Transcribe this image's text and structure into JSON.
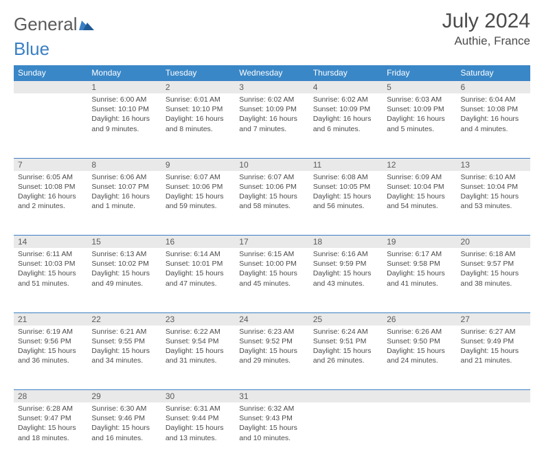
{
  "brand": {
    "part1": "General",
    "part2": "Blue"
  },
  "title": "July 2024",
  "location": "Authie, France",
  "colors": {
    "header_bg": "#3a87c7",
    "header_text": "#ffffff",
    "daynum_bg": "#e9e9e9",
    "daynum_border": "#3a7fc4",
    "text": "#4a4a4a",
    "logo_gray": "#5a5a5a",
    "logo_blue": "#3a7fc4",
    "background": "#ffffff"
  },
  "typography": {
    "title_fontsize": 30,
    "location_fontsize": 17,
    "header_fontsize": 12,
    "cell_fontsize": 10.5,
    "daynum_fontsize": 12
  },
  "weekdays": [
    "Sunday",
    "Monday",
    "Tuesday",
    "Wednesday",
    "Thursday",
    "Friday",
    "Saturday"
  ],
  "weeks": [
    {
      "nums": [
        "",
        "1",
        "2",
        "3",
        "4",
        "5",
        "6"
      ],
      "cells": [
        {
          "sunrise": "",
          "sunset": "",
          "daylight": ""
        },
        {
          "sunrise": "Sunrise: 6:00 AM",
          "sunset": "Sunset: 10:10 PM",
          "daylight": "Daylight: 16 hours and 9 minutes."
        },
        {
          "sunrise": "Sunrise: 6:01 AM",
          "sunset": "Sunset: 10:10 PM",
          "daylight": "Daylight: 16 hours and 8 minutes."
        },
        {
          "sunrise": "Sunrise: 6:02 AM",
          "sunset": "Sunset: 10:09 PM",
          "daylight": "Daylight: 16 hours and 7 minutes."
        },
        {
          "sunrise": "Sunrise: 6:02 AM",
          "sunset": "Sunset: 10:09 PM",
          "daylight": "Daylight: 16 hours and 6 minutes."
        },
        {
          "sunrise": "Sunrise: 6:03 AM",
          "sunset": "Sunset: 10:09 PM",
          "daylight": "Daylight: 16 hours and 5 minutes."
        },
        {
          "sunrise": "Sunrise: 6:04 AM",
          "sunset": "Sunset: 10:08 PM",
          "daylight": "Daylight: 16 hours and 4 minutes."
        }
      ]
    },
    {
      "nums": [
        "7",
        "8",
        "9",
        "10",
        "11",
        "12",
        "13"
      ],
      "cells": [
        {
          "sunrise": "Sunrise: 6:05 AM",
          "sunset": "Sunset: 10:08 PM",
          "daylight": "Daylight: 16 hours and 2 minutes."
        },
        {
          "sunrise": "Sunrise: 6:06 AM",
          "sunset": "Sunset: 10:07 PM",
          "daylight": "Daylight: 16 hours and 1 minute."
        },
        {
          "sunrise": "Sunrise: 6:07 AM",
          "sunset": "Sunset: 10:06 PM",
          "daylight": "Daylight: 15 hours and 59 minutes."
        },
        {
          "sunrise": "Sunrise: 6:07 AM",
          "sunset": "Sunset: 10:06 PM",
          "daylight": "Daylight: 15 hours and 58 minutes."
        },
        {
          "sunrise": "Sunrise: 6:08 AM",
          "sunset": "Sunset: 10:05 PM",
          "daylight": "Daylight: 15 hours and 56 minutes."
        },
        {
          "sunrise": "Sunrise: 6:09 AM",
          "sunset": "Sunset: 10:04 PM",
          "daylight": "Daylight: 15 hours and 54 minutes."
        },
        {
          "sunrise": "Sunrise: 6:10 AM",
          "sunset": "Sunset: 10:04 PM",
          "daylight": "Daylight: 15 hours and 53 minutes."
        }
      ]
    },
    {
      "nums": [
        "14",
        "15",
        "16",
        "17",
        "18",
        "19",
        "20"
      ],
      "cells": [
        {
          "sunrise": "Sunrise: 6:11 AM",
          "sunset": "Sunset: 10:03 PM",
          "daylight": "Daylight: 15 hours and 51 minutes."
        },
        {
          "sunrise": "Sunrise: 6:13 AM",
          "sunset": "Sunset: 10:02 PM",
          "daylight": "Daylight: 15 hours and 49 minutes."
        },
        {
          "sunrise": "Sunrise: 6:14 AM",
          "sunset": "Sunset: 10:01 PM",
          "daylight": "Daylight: 15 hours and 47 minutes."
        },
        {
          "sunrise": "Sunrise: 6:15 AM",
          "sunset": "Sunset: 10:00 PM",
          "daylight": "Daylight: 15 hours and 45 minutes."
        },
        {
          "sunrise": "Sunrise: 6:16 AM",
          "sunset": "Sunset: 9:59 PM",
          "daylight": "Daylight: 15 hours and 43 minutes."
        },
        {
          "sunrise": "Sunrise: 6:17 AM",
          "sunset": "Sunset: 9:58 PM",
          "daylight": "Daylight: 15 hours and 41 minutes."
        },
        {
          "sunrise": "Sunrise: 6:18 AM",
          "sunset": "Sunset: 9:57 PM",
          "daylight": "Daylight: 15 hours and 38 minutes."
        }
      ]
    },
    {
      "nums": [
        "21",
        "22",
        "23",
        "24",
        "25",
        "26",
        "27"
      ],
      "cells": [
        {
          "sunrise": "Sunrise: 6:19 AM",
          "sunset": "Sunset: 9:56 PM",
          "daylight": "Daylight: 15 hours and 36 minutes."
        },
        {
          "sunrise": "Sunrise: 6:21 AM",
          "sunset": "Sunset: 9:55 PM",
          "daylight": "Daylight: 15 hours and 34 minutes."
        },
        {
          "sunrise": "Sunrise: 6:22 AM",
          "sunset": "Sunset: 9:54 PM",
          "daylight": "Daylight: 15 hours and 31 minutes."
        },
        {
          "sunrise": "Sunrise: 6:23 AM",
          "sunset": "Sunset: 9:52 PM",
          "daylight": "Daylight: 15 hours and 29 minutes."
        },
        {
          "sunrise": "Sunrise: 6:24 AM",
          "sunset": "Sunset: 9:51 PM",
          "daylight": "Daylight: 15 hours and 26 minutes."
        },
        {
          "sunrise": "Sunrise: 6:26 AM",
          "sunset": "Sunset: 9:50 PM",
          "daylight": "Daylight: 15 hours and 24 minutes."
        },
        {
          "sunrise": "Sunrise: 6:27 AM",
          "sunset": "Sunset: 9:49 PM",
          "daylight": "Daylight: 15 hours and 21 minutes."
        }
      ]
    },
    {
      "nums": [
        "28",
        "29",
        "30",
        "31",
        "",
        "",
        ""
      ],
      "cells": [
        {
          "sunrise": "Sunrise: 6:28 AM",
          "sunset": "Sunset: 9:47 PM",
          "daylight": "Daylight: 15 hours and 18 minutes."
        },
        {
          "sunrise": "Sunrise: 6:30 AM",
          "sunset": "Sunset: 9:46 PM",
          "daylight": "Daylight: 15 hours and 16 minutes."
        },
        {
          "sunrise": "Sunrise: 6:31 AM",
          "sunset": "Sunset: 9:44 PM",
          "daylight": "Daylight: 15 hours and 13 minutes."
        },
        {
          "sunrise": "Sunrise: 6:32 AM",
          "sunset": "Sunset: 9:43 PM",
          "daylight": "Daylight: 15 hours and 10 minutes."
        },
        {
          "sunrise": "",
          "sunset": "",
          "daylight": ""
        },
        {
          "sunrise": "",
          "sunset": "",
          "daylight": ""
        },
        {
          "sunrise": "",
          "sunset": "",
          "daylight": ""
        }
      ]
    }
  ]
}
